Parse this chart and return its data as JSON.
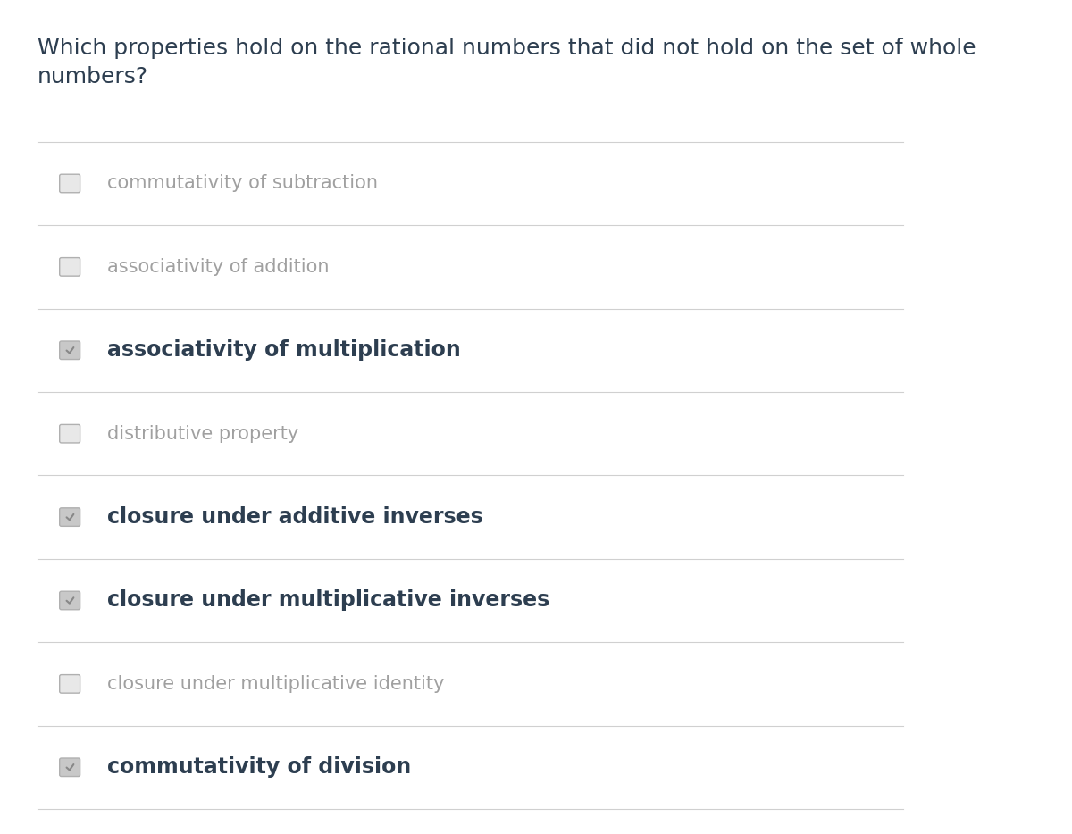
{
  "title": "Which properties hold on the rational numbers that did not hold on the set of whole\nnumbers?",
  "title_color": "#2d3e50",
  "title_fontsize": 18,
  "background_color": "#ffffff",
  "separator_color": "#d0d0d0",
  "options": [
    {
      "label": "commutativity of subtraction",
      "checked": false
    },
    {
      "label": "associativity of addition",
      "checked": false
    },
    {
      "label": "associativity of multiplication",
      "checked": true
    },
    {
      "label": "distributive property",
      "checked": false
    },
    {
      "label": "closure under additive inverses",
      "checked": true
    },
    {
      "label": "closure under multiplicative inverses",
      "checked": true
    },
    {
      "label": "closure under multiplicative identity",
      "checked": false
    },
    {
      "label": "commutativity of division",
      "checked": true
    }
  ],
  "checked_label_color": "#2d3e50",
  "unchecked_label_color": "#a0a0a0",
  "checked_fontsize": 17,
  "unchecked_fontsize": 15,
  "checkbox_size": 0.018,
  "checkbox_checked_color": "#c8c8c8",
  "checkbox_unchecked_color": "#e8e8e8",
  "checkbox_border_color": "#b0b0b0",
  "checkmark_color": "#888888"
}
